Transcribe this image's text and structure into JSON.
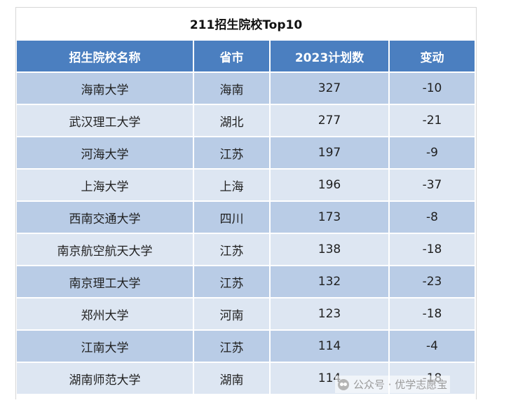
{
  "title": "211招生院校Top10",
  "headers": [
    "招生院校名称",
    "省市",
    "2023计划数",
    "变动"
  ],
  "rows": [
    [
      "海南大学",
      "海南",
      "327",
      "-10"
    ],
    [
      "武汉理工大学",
      "湖北",
      "277",
      "-21"
    ],
    [
      "河海大学",
      "江苏",
      "197",
      "-9"
    ],
    [
      "上海大学",
      "上海",
      "196",
      "-37"
    ],
    [
      "西南交通大学",
      "四川",
      "173",
      "-8"
    ],
    [
      "南京航空航天大学",
      "江苏",
      "138",
      "-18"
    ],
    [
      "南京理工大学",
      "江苏",
      "132",
      "-23"
    ],
    [
      "郑州大学",
      "河南",
      "123",
      "-18"
    ],
    [
      "江南大学",
      "江苏",
      "114",
      "-4"
    ],
    [
      "湖南师范大学",
      "湖南",
      "114",
      "-18"
    ]
  ],
  "watermark": {
    "text": "公众号 · 优学志愿宝",
    "icon": "wechat-icon"
  },
  "colors": {
    "header_bg": "#4b7fc0",
    "row_odd": "#b9cce6",
    "row_even": "#dde6f2"
  }
}
